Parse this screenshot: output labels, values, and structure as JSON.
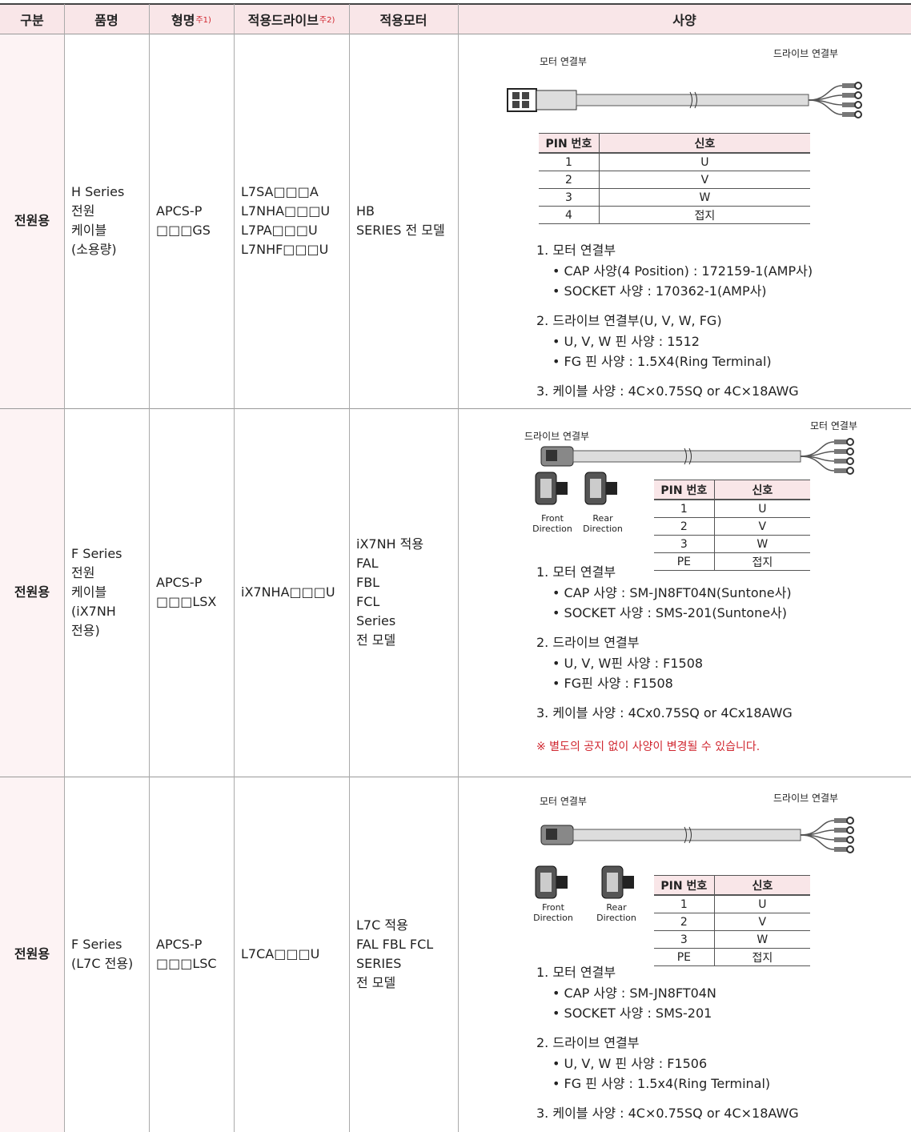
{
  "header": {
    "columns": [
      {
        "text": "구분"
      },
      {
        "text": "품명"
      },
      {
        "text": "형명",
        "note": "주1)"
      },
      {
        "text": "적용드라이브",
        "note": "주2)"
      },
      {
        "text": "적용모터"
      },
      {
        "text": "사양"
      }
    ]
  },
  "rows": [
    {
      "category": "전원용",
      "name": [
        "H Series",
        "전원",
        "케이블",
        "(소용량)"
      ],
      "model": [
        "APCS-P",
        "□□□GS"
      ],
      "drive": [
        "L7SA□□□A",
        "L7NHA□□□U",
        "L7PA□□□U",
        "L7NHF□□□U"
      ],
      "motor": [
        "HB",
        "SERIES 전 모델"
      ],
      "spec": {
        "diagram": {
          "left_label": "모터 연결부",
          "right_label": "드라이브 연결부"
        },
        "pin_table": {
          "header": [
            "PIN 번호",
            "신호"
          ],
          "rows": [
            [
              "1",
              "U"
            ],
            [
              "2",
              "V"
            ],
            [
              "3",
              "W"
            ],
            [
              "4",
              "접지"
            ]
          ]
        },
        "items": [
          {
            "title": "1. 모터 연결부",
            "bullets": [
              "CAP 사양(4 Position) : 172159-1(AMP사)",
              "SOCKET 사양 : 170362-1(AMP사)"
            ]
          },
          {
            "title": "2. 드라이브 연결부(U, V, W, FG)",
            "bullets": [
              "U, V, W  핀 사양 : 1512",
              "FG 핀 사양 : 1.5X4(Ring Terminal)"
            ]
          },
          {
            "title": "3. 케이블 사양 : 4C×0.75SQ or 4C×18AWG",
            "bullets": []
          }
        ]
      }
    },
    {
      "category": "전원용",
      "name": [
        "F Series",
        "전원",
        "케이블",
        "(iX7NH",
        "전용)"
      ],
      "model": [
        "APCS-P",
        "□□□LSX"
      ],
      "drive": [
        "iX7NHA□□□U"
      ],
      "motor": [
        "iX7NH 적용",
        "FAL",
        "FBL",
        "FCL",
        "Series",
        "전 모델"
      ],
      "spec": {
        "diagram": {
          "left_label": "드라이브 연결부",
          "right_label": "모터 연결부",
          "front_label": [
            "Front",
            "Direction"
          ],
          "rear_label": [
            "Rear",
            "Direction"
          ]
        },
        "pin_table": {
          "header": [
            "PIN 번호",
            "신호"
          ],
          "rows": [
            [
              "1",
              "U"
            ],
            [
              "2",
              "V"
            ],
            [
              "3",
              "W"
            ],
            [
              "PE",
              "접지"
            ]
          ]
        },
        "items": [
          {
            "title": "1. 모터 연결부",
            "bullets": [
              "CAP 사양 : SM-JN8FT04N(Suntone사)",
              "SOCKET 사양 : SMS-201(Suntone사)"
            ]
          },
          {
            "title": "2. 드라이브 연결부",
            "bullets": [
              "U, V, W핀 사양 : F1508",
              "FG핀 사양 : F1508"
            ]
          },
          {
            "title": "3. 케이블 사양 : 4Cx0.75SQ or 4Cx18AWG",
            "bullets": []
          }
        ],
        "note": "※ 별도의 공지 없이 사양이 변경될 수 있습니다."
      }
    },
    {
      "category": "전원용",
      "name": [
        "F Series",
        "(L7C 전용)"
      ],
      "model": [
        "APCS-P",
        "□□□LSC"
      ],
      "drive": [
        "L7CA□□□U"
      ],
      "motor": [
        "L7C 적용",
        "FAL FBL FCL",
        "SERIES",
        "전 모델"
      ],
      "spec": {
        "diagram": {
          "left_label": "모터 연결부",
          "right_label": "드라이브 연결부",
          "front_label": [
            "Front",
            "Direction"
          ],
          "rear_label": [
            "Rear",
            "Direction"
          ]
        },
        "pin_table": {
          "header": [
            "PIN 번호",
            "신호"
          ],
          "rows": [
            [
              "1",
              "U"
            ],
            [
              "2",
              "V"
            ],
            [
              "3",
              "W"
            ],
            [
              "PE",
              "접지"
            ]
          ]
        },
        "items": [
          {
            "title": "1. 모터 연결부",
            "bullets": [
              "CAP 사양 : SM-JN8FT04N",
              "SOCKET 사양 : SMS-201"
            ]
          },
          {
            "title": "2. 드라이브 연결부",
            "bullets": [
              "U, V, W  핀 사양 : F1506",
              "FG 핀 사양 : 1.5x4(Ring Terminal)"
            ]
          },
          {
            "title": "3. 케이블 사양 : 4C×0.75SQ or 4C×18AWG",
            "bullets": []
          }
        ]
      }
    }
  ]
}
